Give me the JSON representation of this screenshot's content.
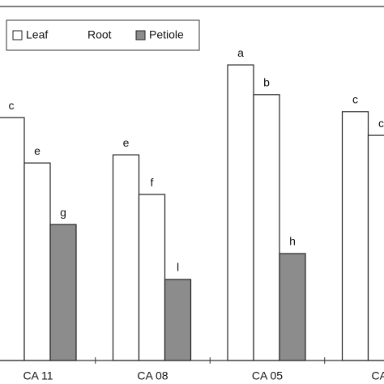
{
  "chart_data": {
    "type": "bar",
    "categories": [
      "CA 11",
      "CA 08",
      "CA 05",
      "CA"
    ],
    "ylim": [
      0,
      100
    ],
    "legend": "top-left",
    "series": [
      {
        "name": "Leaf",
        "color": "#ffffff",
        "values": [
          68.6,
          58.1,
          83.5,
          70.3
        ],
        "letters": [
          "c",
          "e",
          "a",
          "c"
        ]
      },
      {
        "name": "Root",
        "color": "#ffffff",
        "values": [
          55.8,
          46.9,
          75.1,
          63.6
        ],
        "letters": [
          "e",
          "f",
          "b",
          "c"
        ]
      },
      {
        "name": "Petiole",
        "color": "#8c8c8c",
        "values": [
          38.4,
          22.9,
          30.2,
          null
        ],
        "letters": [
          "g",
          "l",
          "h",
          null
        ]
      }
    ]
  }
}
